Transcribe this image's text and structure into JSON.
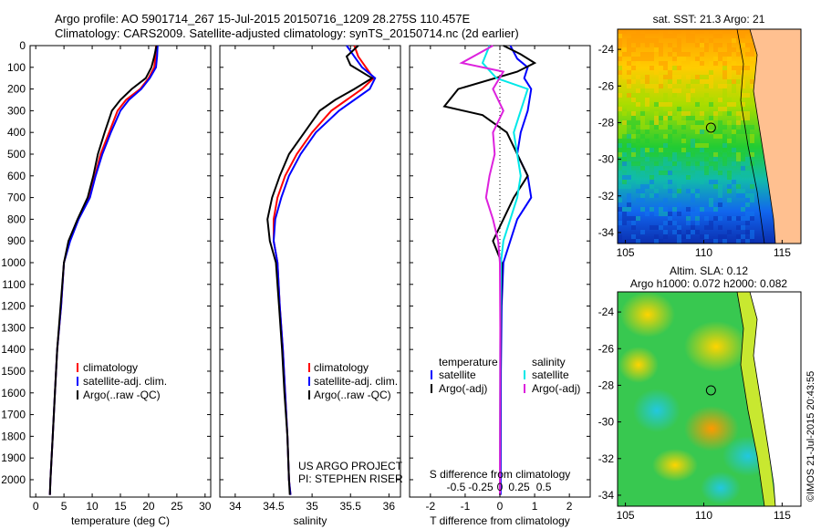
{
  "header": {
    "line1": "Argo profile: AO 5901714_267 15-Jul-2015 20150716_1209 28.275S 110.457E",
    "line2": "Climatology: CARS2009. Satellite-adjusted climatology: synTS_20150714.nc (2d earlier)"
  },
  "chart_data": [
    {
      "type": "line",
      "name": "temperature",
      "xlabel": "temperature (deg C)",
      "ylabel": "depth",
      "xlim": [
        -1,
        31
      ],
      "ylim": [
        2080,
        0
      ],
      "xticks": [
        0,
        5,
        10,
        15,
        20,
        25,
        30
      ],
      "yticks": [
        0,
        100,
        200,
        300,
        400,
        500,
        600,
        700,
        800,
        900,
        1000,
        1100,
        1200,
        1300,
        1400,
        1500,
        1600,
        1700,
        1800,
        1900,
        2000
      ],
      "legend": [
        "climatology",
        "satellite-adj. clim.",
        "Argo(..raw -QC)"
      ],
      "series": [
        {
          "name": "climatology",
          "color": "#ff0000",
          "points": [
            [
              21.3,
              0
            ],
            [
              21.2,
              50
            ],
            [
              21.0,
              100
            ],
            [
              20.0,
              150
            ],
            [
              18.5,
              200
            ],
            [
              16.0,
              250
            ],
            [
              14.5,
              300
            ],
            [
              13.0,
              400
            ],
            [
              11.5,
              500
            ],
            [
              10.5,
              600
            ],
            [
              9.5,
              700
            ],
            [
              7.5,
              800
            ],
            [
              6.0,
              900
            ],
            [
              5.0,
              1000
            ],
            [
              4.5,
              1200
            ],
            [
              3.8,
              1400
            ],
            [
              3.4,
              1600
            ],
            [
              3.0,
              1800
            ],
            [
              2.6,
              2000
            ],
            [
              2.5,
              2070
            ]
          ]
        },
        {
          "name": "satellite-adj. clim.",
          "color": "#0000ff",
          "points": [
            [
              21.6,
              0
            ],
            [
              21.5,
              50
            ],
            [
              21.3,
              100
            ],
            [
              20.2,
              150
            ],
            [
              18.7,
              200
            ],
            [
              16.5,
              250
            ],
            [
              15.0,
              300
            ],
            [
              13.3,
              400
            ],
            [
              11.8,
              500
            ],
            [
              10.6,
              600
            ],
            [
              9.6,
              700
            ],
            [
              7.6,
              800
            ],
            [
              6.1,
              900
            ],
            [
              5.0,
              1000
            ],
            [
              4.5,
              1200
            ],
            [
              3.8,
              1400
            ],
            [
              3.4,
              1600
            ],
            [
              3.0,
              1800
            ],
            [
              2.6,
              2000
            ],
            [
              2.5,
              2070
            ]
          ]
        },
        {
          "name": "Argo(..raw -QC)",
          "color": "#000000",
          "points": [
            [
              21.4,
              0
            ],
            [
              21.0,
              50
            ],
            [
              20.5,
              100
            ],
            [
              19.5,
              150
            ],
            [
              17.0,
              200
            ],
            [
              15.0,
              250
            ],
            [
              13.5,
              300
            ],
            [
              12.2,
              400
            ],
            [
              11.0,
              500
            ],
            [
              10.2,
              600
            ],
            [
              9.2,
              700
            ],
            [
              7.4,
              800
            ],
            [
              5.8,
              900
            ],
            [
              5.0,
              1000
            ],
            [
              4.4,
              1200
            ],
            [
              3.8,
              1400
            ],
            [
              3.4,
              1600
            ],
            [
              3.0,
              1800
            ],
            [
              2.6,
              2000
            ],
            [
              2.5,
              2070
            ]
          ]
        }
      ]
    },
    {
      "type": "line",
      "name": "salinity",
      "xlabel": "salinity",
      "xlim": [
        33.8,
        36.15
      ],
      "ylim": [
        2080,
        0
      ],
      "xticks": [
        34,
        34.5,
        35,
        35.5,
        36
      ],
      "legend": [
        "climatology",
        "satellite-adj. clim.",
        "Argo(..raw -QC)"
      ],
      "annotation1": "US ARGO PROJECT",
      "annotation2": "PI: STEPHEN RISER",
      "series": [
        {
          "name": "climatology",
          "color": "#ff0000",
          "points": [
            [
              35.55,
              0
            ],
            [
              35.6,
              50
            ],
            [
              35.7,
              100
            ],
            [
              35.8,
              150
            ],
            [
              35.65,
              200
            ],
            [
              35.45,
              250
            ],
            [
              35.25,
              300
            ],
            [
              35.0,
              400
            ],
            [
              34.8,
              500
            ],
            [
              34.65,
              600
            ],
            [
              34.55,
              700
            ],
            [
              34.5,
              800
            ],
            [
              34.5,
              900
            ],
            [
              34.55,
              1000
            ],
            [
              34.58,
              1200
            ],
            [
              34.62,
              1400
            ],
            [
              34.65,
              1600
            ],
            [
              34.68,
              1800
            ],
            [
              34.7,
              2000
            ],
            [
              34.72,
              2070
            ]
          ]
        },
        {
          "name": "satellite-adj. clim.",
          "color": "#0000ff",
          "points": [
            [
              35.45,
              0
            ],
            [
              35.55,
              50
            ],
            [
              35.65,
              100
            ],
            [
              35.82,
              150
            ],
            [
              35.75,
              200
            ],
            [
              35.55,
              250
            ],
            [
              35.35,
              300
            ],
            [
              35.05,
              400
            ],
            [
              34.85,
              500
            ],
            [
              34.7,
              600
            ],
            [
              34.6,
              700
            ],
            [
              34.52,
              800
            ],
            [
              34.5,
              900
            ],
            [
              34.55,
              1000
            ],
            [
              34.58,
              1200
            ],
            [
              34.62,
              1400
            ],
            [
              34.65,
              1600
            ],
            [
              34.68,
              1800
            ],
            [
              34.7,
              2000
            ],
            [
              34.72,
              2070
            ]
          ]
        },
        {
          "name": "Argo(..raw -QC)",
          "color": "#000000",
          "points": [
            [
              35.6,
              0
            ],
            [
              35.45,
              50
            ],
            [
              35.5,
              90
            ],
            [
              35.78,
              150
            ],
            [
              35.55,
              200
            ],
            [
              35.3,
              250
            ],
            [
              35.1,
              300
            ],
            [
              34.9,
              400
            ],
            [
              34.7,
              500
            ],
            [
              34.58,
              600
            ],
            [
              34.48,
              700
            ],
            [
              34.42,
              800
            ],
            [
              34.45,
              900
            ],
            [
              34.53,
              1000
            ],
            [
              34.57,
              1200
            ],
            [
              34.61,
              1400
            ],
            [
              34.64,
              1600
            ],
            [
              34.68,
              1800
            ],
            [
              34.7,
              2000
            ],
            [
              34.71,
              2070
            ]
          ]
        }
      ]
    },
    {
      "type": "line",
      "name": "difference",
      "xlabel": "T difference from climatology",
      "xlabel_top": "S difference from climatology",
      "xlim": [
        -2.6,
        2.6
      ],
      "ylim": [
        2080,
        0
      ],
      "xticks": [
        -2,
        -1,
        0,
        1,
        2
      ],
      "sticks": [
        "-0.5",
        "-0.25",
        "0",
        "0.25",
        "0.5"
      ],
      "legend_left_title": "temperature",
      "legend_right_title": "salinity",
      "legend": [
        "satellite",
        "Argo(-adj)",
        "satellite",
        "Argo(-adj)"
      ],
      "series": [
        {
          "name": "temperature satellite",
          "color": "#0000ff",
          "points": [
            [
              0.3,
              0
            ],
            [
              0.5,
              60
            ],
            [
              0.8,
              100
            ],
            [
              0.7,
              150
            ],
            [
              0.9,
              200
            ],
            [
              0.8,
              300
            ],
            [
              0.6,
              400
            ],
            [
              0.5,
              500
            ],
            [
              0.8,
              600
            ],
            [
              0.9,
              700
            ],
            [
              0.5,
              800
            ],
            [
              0.3,
              900
            ],
            [
              0.1,
              1000
            ],
            [
              0.05,
              1200
            ],
            [
              0.03,
              1500
            ],
            [
              0.02,
              2070
            ]
          ]
        },
        {
          "name": "temperature Argo(-adj)",
          "color": "#000000",
          "points": [
            [
              0.1,
              0
            ],
            [
              0.6,
              40
            ],
            [
              1.0,
              80
            ],
            [
              0.5,
              120
            ],
            [
              -1.2,
              200
            ],
            [
              -1.6,
              280
            ],
            [
              -0.5,
              320
            ],
            [
              0.2,
              400
            ],
            [
              0.5,
              500
            ],
            [
              0.8,
              600
            ],
            [
              0.4,
              700
            ],
            [
              0.1,
              800
            ],
            [
              -0.2,
              900
            ],
            [
              0.05,
              1000
            ],
            [
              0.02,
              1300
            ],
            [
              0.0,
              2070
            ]
          ]
        },
        {
          "name": "salinity satellite",
          "color": "#00e8e8",
          "points": [
            [
              -0.3,
              0
            ],
            [
              -0.5,
              80
            ],
            [
              -0.1,
              150
            ],
            [
              0.8,
              200
            ],
            [
              0.6,
              300
            ],
            [
              0.4,
              400
            ],
            [
              0.5,
              500
            ],
            [
              0.6,
              600
            ],
            [
              0.5,
              700
            ],
            [
              0.3,
              800
            ],
            [
              0.1,
              900
            ],
            [
              0.03,
              1000
            ],
            [
              0.01,
              1400
            ],
            [
              0.0,
              2070
            ]
          ]
        },
        {
          "name": "salinity Argo(-adj)",
          "color": "#dd22dd",
          "points": [
            [
              -0.2,
              0
            ],
            [
              -1.1,
              80
            ],
            [
              0.1,
              120
            ],
            [
              -0.2,
              200
            ],
            [
              0.1,
              300
            ],
            [
              -0.2,
              400
            ],
            [
              -0.15,
              500
            ],
            [
              -0.3,
              600
            ],
            [
              -0.4,
              700
            ],
            [
              -0.2,
              800
            ],
            [
              -0.05,
              900
            ],
            [
              0.0,
              1000
            ],
            [
              0.01,
              1300
            ],
            [
              0.0,
              2070
            ]
          ]
        }
      ]
    },
    {
      "type": "heatmap",
      "name": "sst-map",
      "title": "sat. SST: 21.3 Argo: 21",
      "xticks": [
        "105",
        "110",
        "115"
      ],
      "yticks": [
        "-24",
        "-26",
        "-28",
        "-30",
        "-32",
        "-34"
      ],
      "xlim": [
        104.5,
        116.2
      ],
      "ylim": [
        -34.6,
        -22.9
      ],
      "float_position": [
        110.457,
        -28.275
      ]
    },
    {
      "type": "heatmap",
      "name": "sla-map",
      "title1": "Altim. SLA: 0.12",
      "title2": "Argo h1000: 0.072 h2000: 0.082",
      "xticks": [
        "105",
        "110",
        "115"
      ],
      "yticks": [
        "-24",
        "-26",
        "-28",
        "-30",
        "-32",
        "-34"
      ],
      "xlim": [
        104.5,
        116.2
      ],
      "ylim": [
        -34.6,
        -22.9
      ],
      "float_position": [
        110.457,
        -28.275
      ]
    }
  ],
  "footer": {
    "credit": "©IMOS 21-Jul-2015 20:43:55"
  }
}
